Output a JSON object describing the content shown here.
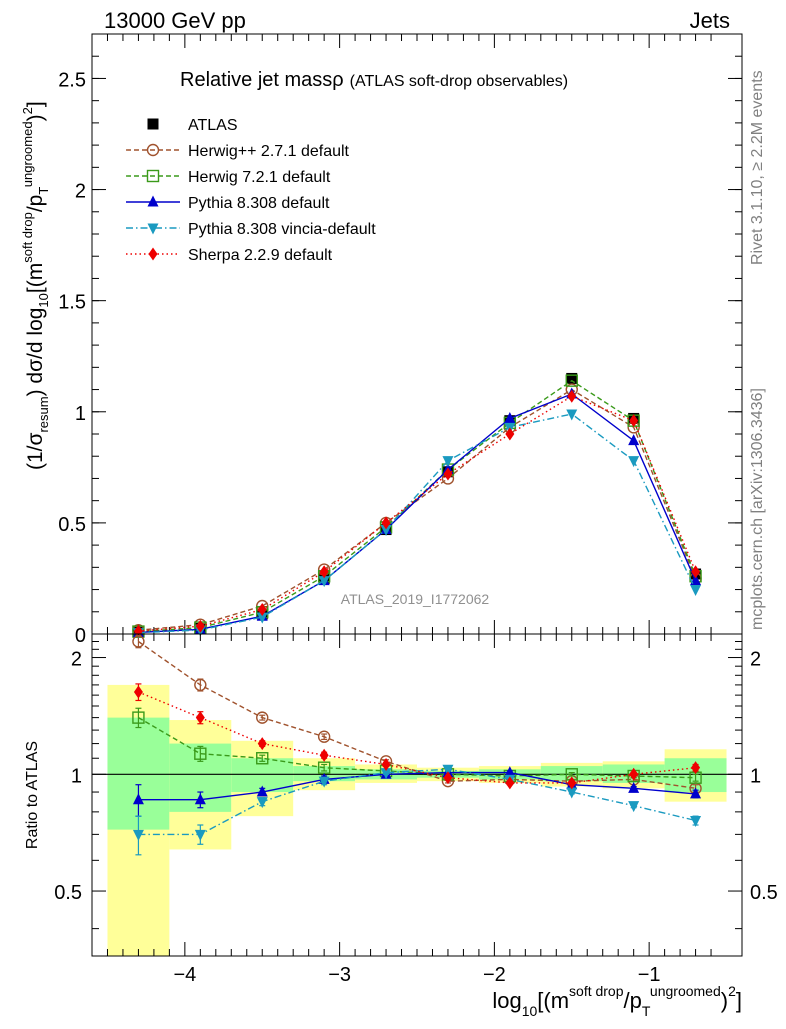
{
  "header": {
    "left": "13000 GeV pp",
    "right": "Jets"
  },
  "side_labels": {
    "rivet": "Rivet 3.1.10, ≥ 2.2M events",
    "mcplots": "mcplots.cern.ch [arXiv:1306.3436]"
  },
  "chart_data": [
    {
      "type": "line",
      "panel": "main",
      "title_main": "Relative jet massρ",
      "title_sub": "(ATLAS soft-drop observables)",
      "ylabel": "(1/σresum) dσ/d log10[(msoft drop/pTungroomed)2]",
      "ylim": [
        0,
        2.7
      ],
      "xlim": [
        -4.6,
        -0.4
      ],
      "yticks": [
        0,
        0.5,
        1,
        1.5,
        2,
        2.5
      ],
      "ytick_labels": [
        "0",
        "0.5",
        "1",
        "1.5",
        "2",
        "2.5"
      ],
      "watermark": "ATLAS_2019_I1772062",
      "legend_position": "top-left",
      "x": [
        -4.3,
        -3.9,
        -3.5,
        -3.1,
        -2.7,
        -2.3,
        -1.9,
        -1.5,
        -1.1,
        -0.7
      ],
      "series": [
        {
          "name": "ATLAS",
          "color": "#000000",
          "style": "data",
          "marker": "square-filled",
          "values": [
            0.008,
            0.025,
            0.09,
            0.25,
            0.47,
            0.73,
            0.96,
            1.15,
            0.97,
            0.27
          ],
          "band_green": [
            0.28,
            0.2,
            0.1,
            0.05,
            0.03,
            0.02,
            0.03,
            0.04,
            0.05,
            0.09
          ],
          "band_yellow": [
            0.6,
            0.35,
            0.2,
            0.09,
            0.05,
            0.04,
            0.06,
            0.08,
            0.09,
            0.14
          ]
        },
        {
          "name": "Herwig++ 2.7.1 default",
          "color": "#a0522d",
          "style": "dash",
          "marker": "circle-open",
          "values": [
            0.017,
            0.042,
            0.126,
            0.29,
            0.5,
            0.7,
            0.93,
            1.1,
            0.93,
            0.25
          ]
        },
        {
          "name": "Herwig 7.2.1 default",
          "color": "#3a9a1a",
          "style": "dash",
          "marker": "square-open",
          "values": [
            0.011,
            0.029,
            0.098,
            0.26,
            0.48,
            0.74,
            0.95,
            1.14,
            0.96,
            0.26
          ]
        },
        {
          "name": "Pythia 8.308 default",
          "color": "#0000cc",
          "style": "solid",
          "marker": "triangle-up",
          "values": [
            0.007,
            0.021,
            0.08,
            0.24,
            0.47,
            0.74,
            0.97,
            1.08,
            0.87,
            0.24
          ]
        },
        {
          "name": "Pythia 8.308 vincia-default",
          "color": "#1a9ac0",
          "style": "dashdot",
          "marker": "triangle-down",
          "values": [
            0.006,
            0.018,
            0.076,
            0.24,
            0.47,
            0.78,
            0.93,
            0.99,
            0.78,
            0.2
          ]
        },
        {
          "name": "Sherpa 2.2.9 default",
          "color": "#ee0000",
          "style": "dot",
          "marker": "diamond",
          "values": [
            0.013,
            0.035,
            0.11,
            0.28,
            0.5,
            0.72,
            0.9,
            1.07,
            0.96,
            0.28
          ]
        }
      ]
    },
    {
      "type": "line",
      "panel": "ratio",
      "ylabel": "Ratio to ATLAS",
      "ylim": [
        0.34,
        2.3
      ],
      "xlim": [
        -4.6,
        -0.4
      ],
      "yticks": [
        0.5,
        1,
        2
      ],
      "ytick_labels": [
        "0.5",
        "1",
        "2"
      ],
      "xticks": [
        -4,
        -3,
        -2,
        -1
      ],
      "xtick_labels": [
        "−4",
        "−3",
        "−2",
        "−1"
      ],
      "xlabel": "log10[(msoft drop/pTungroomed)2]",
      "x": [
        -4.3,
        -3.9,
        -3.5,
        -3.1,
        -2.7,
        -2.3,
        -1.9,
        -1.5,
        -1.1,
        -0.7
      ],
      "bins": [
        [
          -4.5,
          -4.1
        ],
        [
          -4.1,
          -3.7
        ],
        [
          -3.7,
          -3.3
        ],
        [
          -3.3,
          -2.9
        ],
        [
          -2.9,
          -2.5
        ],
        [
          -2.5,
          -2.1
        ],
        [
          -2.1,
          -1.7
        ],
        [
          -1.7,
          -1.3
        ],
        [
          -1.3,
          -0.9
        ],
        [
          -0.9,
          -0.5
        ]
      ],
      "band_green": [
        [
          0.72,
          1.4
        ],
        [
          0.8,
          1.2
        ],
        [
          0.9,
          1.1
        ],
        [
          0.96,
          1.05
        ],
        [
          0.97,
          1.03
        ],
        [
          0.98,
          1.02
        ],
        [
          0.97,
          1.03
        ],
        [
          0.96,
          1.05
        ],
        [
          0.95,
          1.06
        ],
        [
          0.9,
          1.1
        ]
      ],
      "band_yellow": [
        [
          0.34,
          1.7
        ],
        [
          0.64,
          1.38
        ],
        [
          0.78,
          1.22
        ],
        [
          0.91,
          1.1
        ],
        [
          0.95,
          1.06
        ],
        [
          0.96,
          1.04
        ],
        [
          0.95,
          1.05
        ],
        [
          0.93,
          1.07
        ],
        [
          0.92,
          1.08
        ],
        [
          0.85,
          1.16
        ]
      ],
      "series": [
        {
          "name": "Herwig++ 2.7.1 default",
          "color": "#a0522d",
          "style": "dash",
          "marker": "circle-open",
          "values": [
            2.2,
            1.7,
            1.4,
            1.25,
            1.08,
            0.96,
            0.97,
            0.96,
            0.97,
            0.92
          ],
          "errors": [
            0.08,
            0.06,
            0.02,
            0.02,
            0.01,
            0.01,
            0.01,
            0.01,
            0.01,
            0.02
          ]
        },
        {
          "name": "Herwig 7.2.1 default",
          "color": "#3a9a1a",
          "style": "dash",
          "marker": "square-open",
          "values": [
            1.4,
            1.13,
            1.1,
            1.04,
            1.02,
            1.0,
            0.99,
            1.0,
            0.99,
            0.98
          ],
          "errors": [
            0.08,
            0.05,
            0.02,
            0.02,
            0.01,
            0.01,
            0.01,
            0.01,
            0.01,
            0.02
          ]
        },
        {
          "name": "Pythia 8.308 default",
          "color": "#0000cc",
          "style": "solid",
          "marker": "triangle-up",
          "values": [
            0.86,
            0.86,
            0.9,
            0.97,
            1.0,
            1.01,
            1.01,
            0.94,
            0.92,
            0.89
          ],
          "errors": [
            0.08,
            0.04,
            0.02,
            0.02,
            0.01,
            0.01,
            0.01,
            0.01,
            0.01,
            0.02
          ]
        },
        {
          "name": "Pythia 8.308 vincia-default",
          "color": "#1a9ac0",
          "style": "dashdot",
          "marker": "triangle-down",
          "values": [
            0.7,
            0.7,
            0.85,
            0.96,
            1.01,
            1.03,
            0.97,
            0.9,
            0.83,
            0.76
          ],
          "errors": [
            0.08,
            0.04,
            0.02,
            0.02,
            0.01,
            0.01,
            0.01,
            0.01,
            0.01,
            0.02
          ]
        },
        {
          "name": "Sherpa 2.2.9 default",
          "color": "#ee0000",
          "style": "dot",
          "marker": "diamond",
          "values": [
            1.63,
            1.4,
            1.2,
            1.12,
            1.06,
            0.98,
            0.95,
            0.95,
            1.0,
            1.04
          ],
          "errors": [
            0.08,
            0.05,
            0.02,
            0.02,
            0.01,
            0.01,
            0.01,
            0.01,
            0.01,
            0.02
          ]
        }
      ]
    }
  ]
}
